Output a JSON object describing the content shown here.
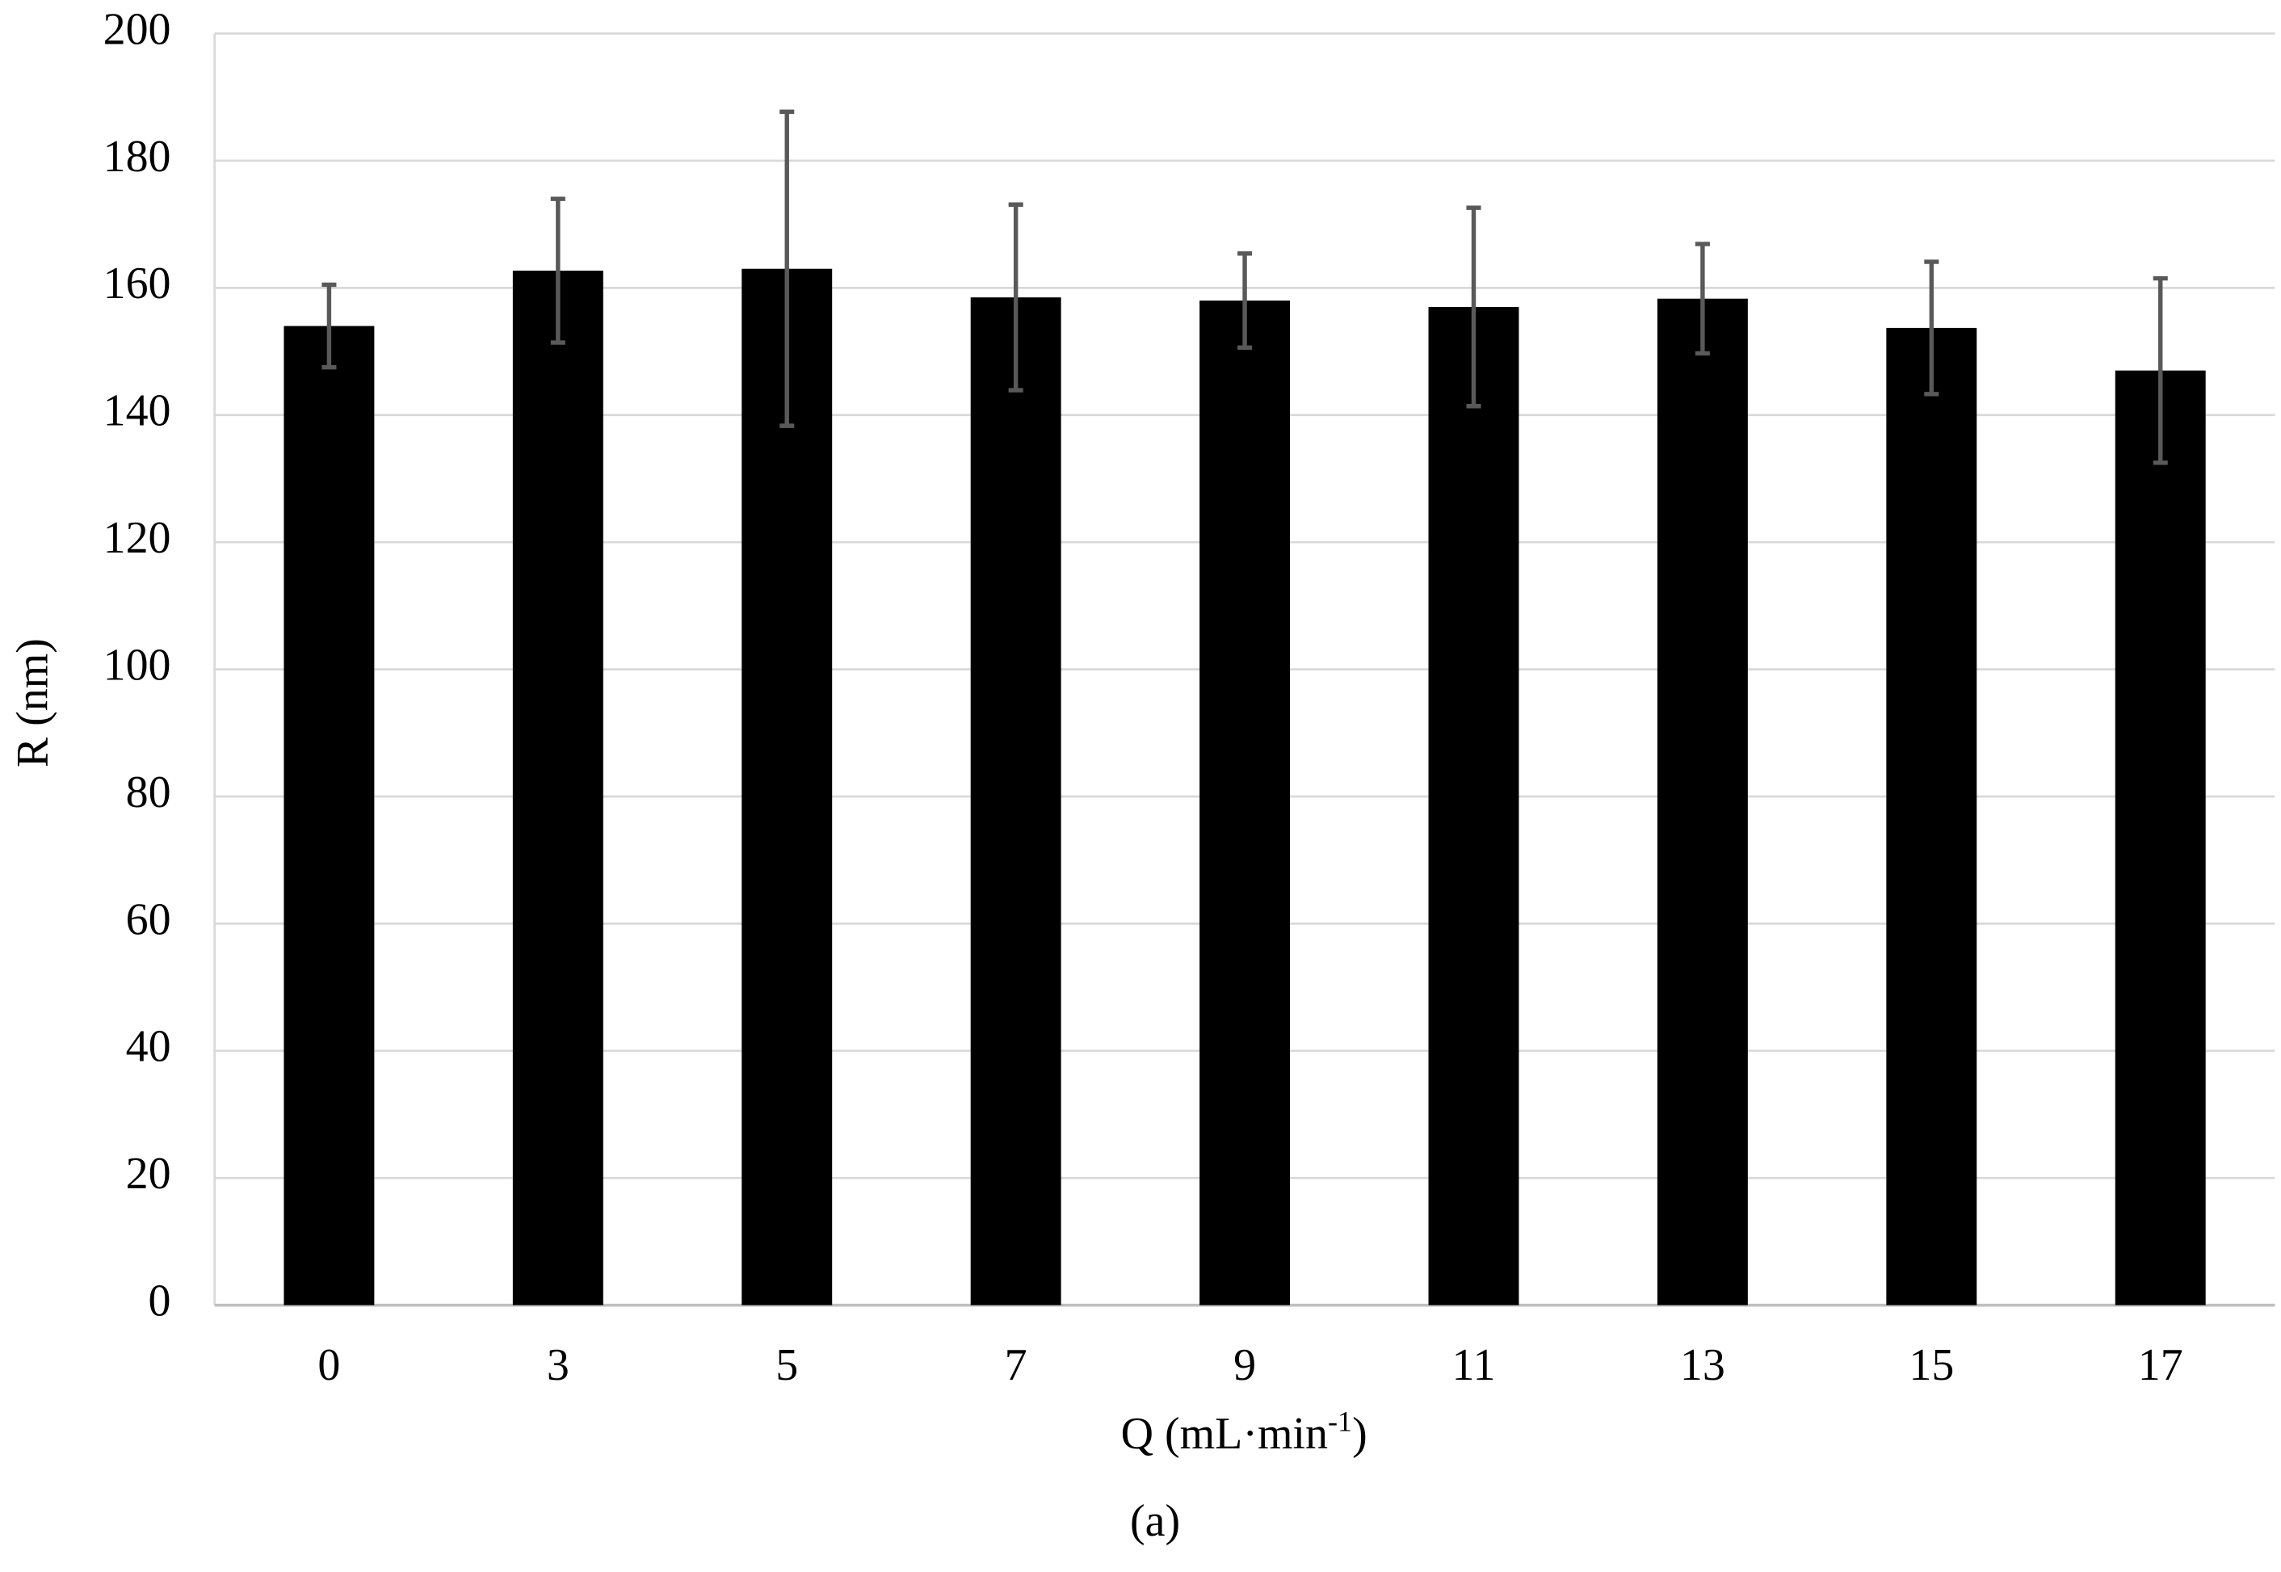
{
  "chart_data": {
    "type": "bar",
    "y_label": "R (nm)",
    "x_label": {
      "text": "Q (mL·min",
      "superscript": "-1",
      "suffix": ")"
    },
    "caption": "(a)",
    "categories": [
      "0",
      "3",
      "5",
      "7",
      "9",
      "11",
      "13",
      "15",
      "17"
    ],
    "values": [
      154,
      162.7,
      163,
      158.5,
      158,
      157,
      158.3,
      153.7,
      147
    ],
    "errors": [
      6.5,
      11.3,
      24.7,
      14.6,
      7.4,
      15.6,
      8.6,
      10.4,
      14.5
    ],
    "color": "#000000",
    "error_color": "#595959",
    "ylim": [
      0,
      200
    ],
    "yticks": [
      0,
      20,
      40,
      60,
      80,
      100,
      120,
      140,
      160,
      180,
      200
    ],
    "grid": true
  }
}
